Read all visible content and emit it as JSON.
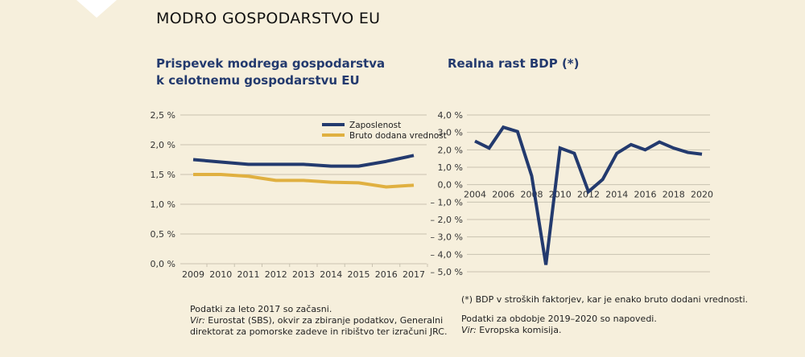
{
  "header": {
    "title": "MODRO GOSPODARSTVO EU"
  },
  "colors": {
    "navy": "#233a6e",
    "gold": "#e0b040",
    "grid": "#c9c2b0"
  },
  "chart_data": [
    {
      "type": "line",
      "title_line1": "Prispevek modrega gospodarstva",
      "title_line2": "k celotnemu gospodarstvu EU",
      "categories": [
        "2009",
        "2010",
        "2011",
        "2012",
        "2013",
        "2014",
        "2015",
        "2016",
        "2017"
      ],
      "ylim": [
        0,
        2.5
      ],
      "yticks": [
        "0,0 %",
        "0,5 %",
        "1,0 %",
        "1,5 %",
        "2,0 %",
        "2,5 %"
      ],
      "grid": true,
      "legend": "top-right",
      "series": [
        {
          "name": "Zaposlenost",
          "color": "#233a6e",
          "values": [
            1.75,
            1.71,
            1.67,
            1.67,
            1.67,
            1.64,
            1.64,
            1.72,
            1.82
          ]
        },
        {
          "name": "Bruto dodana vrednost",
          "color": "#e0b040",
          "values": [
            1.5,
            1.5,
            1.47,
            1.4,
            1.4,
            1.37,
            1.36,
            1.29,
            1.32
          ]
        }
      ]
    },
    {
      "type": "line",
      "title": "Realna rast BDP (*)",
      "x": [
        2004,
        2005,
        2006,
        2007,
        2008,
        2009,
        2010,
        2011,
        2012,
        2013,
        2014,
        2015,
        2016,
        2017,
        2018,
        2019,
        2020
      ],
      "xticks": [
        "2004",
        "2006",
        "2008",
        "2010",
        "2012",
        "2014",
        "2016",
        "2018",
        "2020"
      ],
      "ylim": [
        -5,
        4
      ],
      "yticks": [
        "4,0 %",
        "3,0 %",
        "2,0 %",
        "1,0 %",
        "0,0 %",
        "– 1,0 %",
        "– 2,0 %",
        "– 3,0 %",
        "– 4,0 %",
        "– 5,0 %"
      ],
      "grid": true,
      "series": [
        {
          "color": "#233a6e",
          "values": [
            2.5,
            2.1,
            3.3,
            3.05,
            0.5,
            -4.6,
            2.1,
            1.8,
            -0.4,
            0.3,
            1.8,
            2.3,
            2.0,
            2.45,
            2.1,
            1.85,
            1.75
          ]
        }
      ]
    }
  ],
  "notes": {
    "left_1": "Podatki za leto 2017 so začasni.",
    "left_2_label": "Vir:",
    "left_2": " Eurostat (SBS), okvir za zbiranje podatkov, Generalni",
    "left_3": "direktorat za pomorske zadeve in ribištvo ter izračuni JRC.",
    "right_1": "(*) BDP v stroških faktorjev, kar je enako bruto dodani vrednosti.",
    "right_2": "Podatki za obdobje 2019–2020 so napovedi.",
    "right_3_label": "Vir:",
    "right_3": " Evropska komisija."
  }
}
